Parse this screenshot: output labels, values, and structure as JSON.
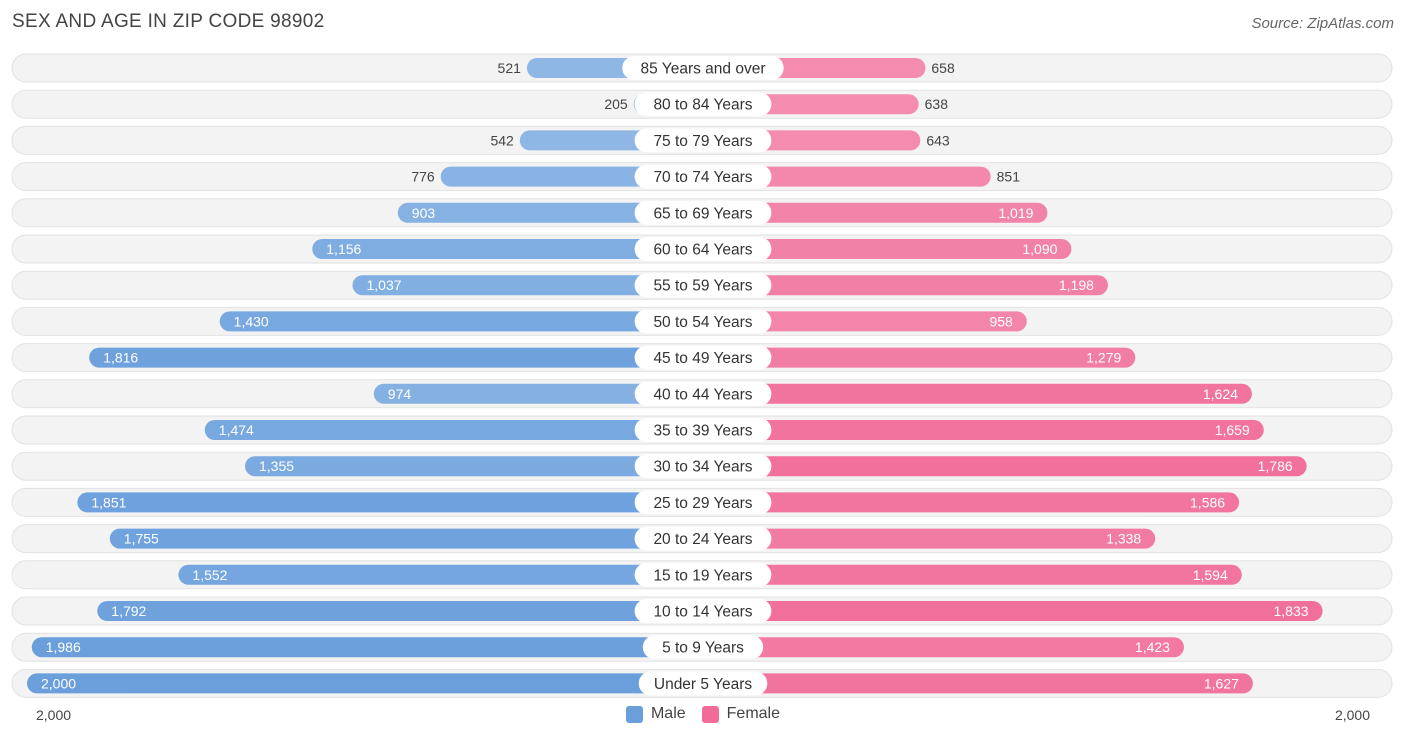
{
  "title": "SEX AND AGE IN ZIP CODE 98902",
  "source": "Source: ZipAtlas.com",
  "colors": {
    "male": "#6a9fdc",
    "female": "#f06b98",
    "row_bg": "#f2f2f2"
  },
  "chart_data": {
    "type": "bar",
    "orientation": "horizontal-diverging",
    "categories": [
      "85 Years and over",
      "80 to 84 Years",
      "75 to 79 Years",
      "70 to 74 Years",
      "65 to 69 Years",
      "60 to 64 Years",
      "55 to 59 Years",
      "50 to 54 Years",
      "45 to 49 Years",
      "40 to 44 Years",
      "35 to 39 Years",
      "30 to 34 Years",
      "25 to 29 Years",
      "20 to 24 Years",
      "15 to 19 Years",
      "10 to 14 Years",
      "5 to 9 Years",
      "Under 5 Years"
    ],
    "series": [
      {
        "name": "Male",
        "values": [
          521,
          205,
          542,
          776,
          903,
          1156,
          1037,
          1430,
          1816,
          974,
          1474,
          1355,
          1851,
          1755,
          1552,
          1792,
          1986,
          2000
        ],
        "labels": [
          "521",
          "205",
          "542",
          "776",
          "903",
          "1,156",
          "1,037",
          "1,430",
          "1,816",
          "974",
          "1,474",
          "1,355",
          "1,851",
          "1,755",
          "1,552",
          "1,792",
          "1,986",
          "2,000"
        ]
      },
      {
        "name": "Female",
        "values": [
          658,
          638,
          643,
          851,
          1019,
          1090,
          1198,
          958,
          1279,
          1624,
          1659,
          1786,
          1586,
          1338,
          1594,
          1833,
          1423,
          1627
        ],
        "labels": [
          "658",
          "638",
          "643",
          "851",
          "1,019",
          "1,090",
          "1,198",
          "958",
          "1,279",
          "1,624",
          "1,659",
          "1,786",
          "1,586",
          "1,338",
          "1,594",
          "1,833",
          "1,423",
          "1,627"
        ]
      }
    ],
    "xlim": [
      -2000,
      2000
    ],
    "axis_left_label": "2,000",
    "axis_right_label": "2,000",
    "legend": [
      "Male",
      "Female"
    ],
    "legend_position": "bottom-center"
  }
}
